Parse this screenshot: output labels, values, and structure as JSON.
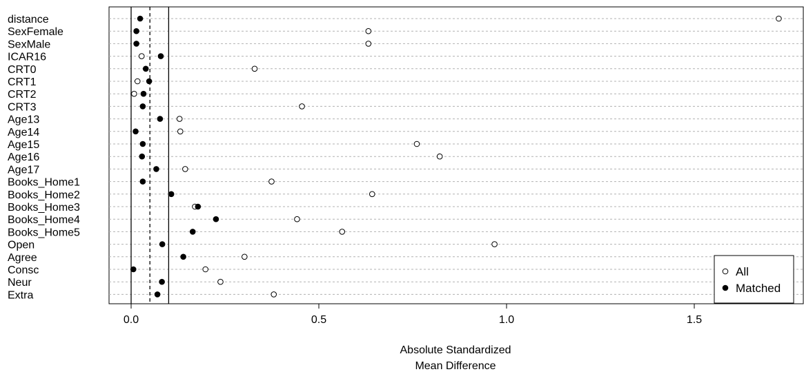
{
  "chart_data": {
    "type": "scatter",
    "title": "",
    "xlabel_lines": [
      "Absolute Standardized",
      "Mean Difference"
    ],
    "ylabel": "",
    "xlim": [
      -0.06,
      1.77
    ],
    "x_ticks": [
      0.0,
      0.5,
      1.0,
      1.5
    ],
    "x_tick_labels": [
      "0.0",
      "0.5",
      "1.0",
      "1.5"
    ],
    "reference_lines": [
      {
        "value": 0.0,
        "style": "solid"
      },
      {
        "value": 0.05,
        "style": "dashed"
      },
      {
        "value": 0.1,
        "style": "solid"
      }
    ],
    "grid": "horizontal dotted",
    "legend_position": "bottom-right",
    "categories": [
      "distance",
      "SexFemale",
      "SexMale",
      "ICAR16",
      "CRT0",
      "CRT1",
      "CRT2",
      "CRT3",
      "Age13",
      "Age14",
      "Age15",
      "Age16",
      "Age17",
      "Books_Home1",
      "Books_Home2",
      "Books_Home3",
      "Books_Home4",
      "Books_Home5",
      "Open",
      "Agree",
      "Consc",
      "Neur",
      "Extra"
    ],
    "series": [
      {
        "name": "All",
        "marker": "open-circle",
        "values": [
          1.725,
          0.632,
          0.632,
          0.028,
          0.329,
          0.017,
          0.008,
          0.455,
          0.129,
          0.131,
          0.761,
          0.822,
          0.144,
          0.374,
          0.642,
          0.17,
          0.442,
          0.562,
          0.968,
          0.302,
          0.198,
          0.238,
          0.38
        ]
      },
      {
        "name": "Matched",
        "marker": "filled-circle",
        "values": [
          0.024,
          0.014,
          0.014,
          0.079,
          0.039,
          0.048,
          0.033,
          0.031,
          0.077,
          0.012,
          0.031,
          0.029,
          0.067,
          0.031,
          0.107,
          0.178,
          0.226,
          0.164,
          0.083,
          0.139,
          0.006,
          0.082,
          0.07
        ]
      }
    ]
  }
}
